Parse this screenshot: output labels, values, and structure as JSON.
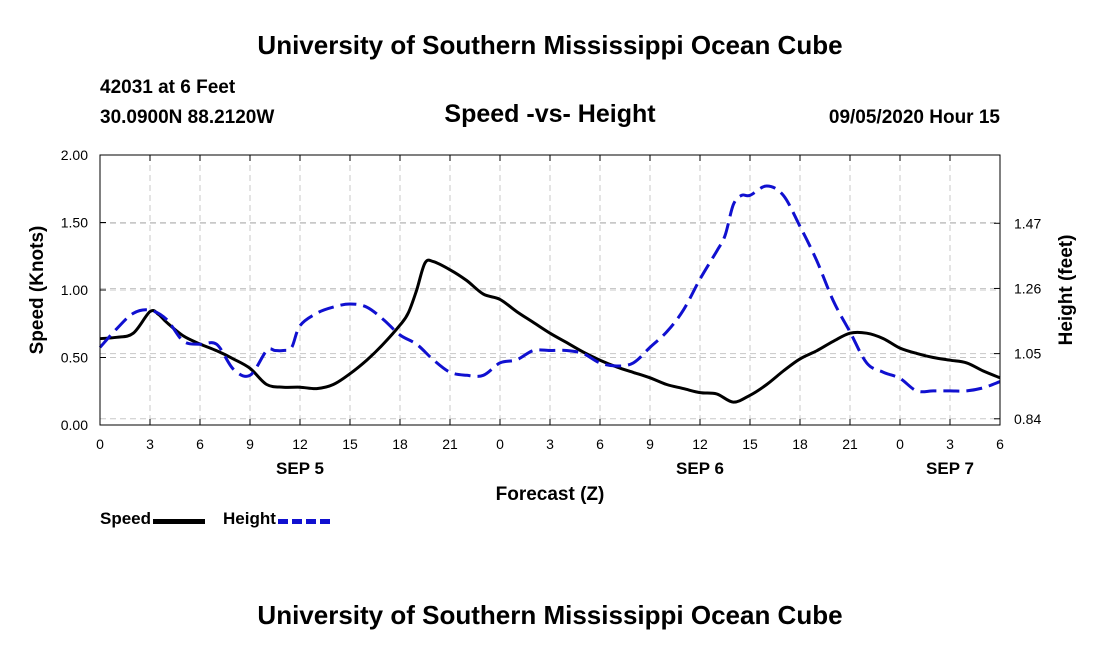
{
  "header": {
    "title": "University of Southern Mississippi Ocean Cube",
    "station": "42031 at 6 Feet",
    "coords": "30.0900N 88.2120W",
    "subtitle": "Speed -vs- Height",
    "datetime": "09/05/2020 Hour 15"
  },
  "footer": {
    "title": "University of Southern Mississippi Ocean Cube"
  },
  "legend": {
    "speed_label": "Speed",
    "height_label": "Height"
  },
  "colors": {
    "speed": "#000000",
    "height": "#1010d0",
    "grid": "#c8c8c8"
  },
  "chart_data": {
    "type": "line",
    "title": "Speed -vs- Height",
    "xlabel": "Forecast (Z)",
    "ylabel": "Speed (Knots)",
    "y2label": "Height (feet)",
    "xlim": [
      0,
      54
    ],
    "ylim": [
      0,
      2.0
    ],
    "y2lim": [
      0.82,
      1.69
    ],
    "x_ticks": [
      0,
      3,
      6,
      9,
      12,
      15,
      18,
      21,
      24,
      27,
      30,
      33,
      36,
      39,
      42,
      45,
      48,
      51,
      54
    ],
    "x_tick_labels": [
      "0",
      "3",
      "6",
      "9",
      "12",
      "15",
      "18",
      "21",
      "0",
      "3",
      "6",
      "9",
      "12",
      "15",
      "18",
      "21",
      "0",
      "3",
      "6"
    ],
    "y_ticks": [
      0,
      0.5,
      1.0,
      1.5,
      2.0
    ],
    "y_tick_labels": [
      "0.00",
      "0.50",
      "1.00",
      "1.50",
      "2.00"
    ],
    "y2_ticks": [
      0.84,
      1.05,
      1.26,
      1.47
    ],
    "y2_tick_labels": [
      "0.84",
      "1.05",
      "1.26",
      "1.47"
    ],
    "day_labels": [
      {
        "x": 12,
        "label": "SEP 5"
      },
      {
        "x": 36,
        "label": "SEP 6"
      },
      {
        "x": 51,
        "label": "SEP 7"
      }
    ],
    "grid": true,
    "series": [
      {
        "name": "Speed",
        "axis": "left",
        "style": "solid",
        "x": [
          0,
          1,
          2,
          3,
          3.5,
          4,
          5,
          6,
          7,
          8,
          9,
          10,
          11,
          12,
          13,
          14,
          15,
          16,
          17,
          18,
          18.5,
          19,
          19.5,
          20,
          21,
          22,
          23,
          24,
          25,
          26,
          27,
          28,
          29,
          30,
          31,
          32,
          33,
          34,
          35,
          36,
          37,
          38,
          39,
          40,
          41,
          42,
          43,
          44,
          45,
          46,
          47,
          48,
          49,
          50,
          51,
          52,
          53,
          54
        ],
        "values": [
          0.64,
          0.65,
          0.68,
          0.84,
          0.82,
          0.76,
          0.66,
          0.6,
          0.55,
          0.49,
          0.42,
          0.3,
          0.28,
          0.28,
          0.27,
          0.3,
          0.38,
          0.48,
          0.6,
          0.74,
          0.83,
          1.0,
          1.2,
          1.21,
          1.15,
          1.07,
          0.97,
          0.93,
          0.84,
          0.76,
          0.68,
          0.61,
          0.54,
          0.48,
          0.43,
          0.39,
          0.35,
          0.3,
          0.27,
          0.24,
          0.23,
          0.17,
          0.22,
          0.3,
          0.4,
          0.49,
          0.55,
          0.62,
          0.68,
          0.68,
          0.64,
          0.57,
          0.53,
          0.5,
          0.48,
          0.46,
          0.4,
          0.35
        ]
      },
      {
        "name": "Height",
        "axis": "right",
        "style": "dashed",
        "x": [
          0,
          1,
          2,
          3,
          4,
          5,
          6,
          7,
          8,
          9,
          10,
          10.5,
          11,
          11.5,
          12,
          13,
          14,
          15,
          16,
          17,
          18,
          19,
          20,
          21,
          22,
          23,
          24,
          25,
          26,
          27,
          28,
          29,
          30,
          31,
          32,
          33,
          34,
          35,
          36,
          37,
          37.5,
          38,
          38.5,
          39,
          40,
          41,
          42,
          43,
          44,
          45,
          46,
          47,
          48,
          49,
          50,
          51,
          52,
          53,
          54
        ],
        "values": [
          1.07,
          1.13,
          1.18,
          1.19,
          1.16,
          1.09,
          1.08,
          1.08,
          1.0,
          0.98,
          1.06,
          1.06,
          1.06,
          1.07,
          1.14,
          1.18,
          1.2,
          1.21,
          1.2,
          1.16,
          1.11,
          1.08,
          1.03,
          0.99,
          0.98,
          0.98,
          1.02,
          1.03,
          1.06,
          1.06,
          1.06,
          1.05,
          1.02,
          1.01,
          1.02,
          1.07,
          1.12,
          1.19,
          1.29,
          1.38,
          1.43,
          1.53,
          1.56,
          1.56,
          1.59,
          1.56,
          1.46,
          1.35,
          1.22,
          1.12,
          1.02,
          0.99,
          0.97,
          0.93,
          0.93,
          0.93,
          0.93,
          0.94,
          0.96
        ]
      }
    ]
  }
}
